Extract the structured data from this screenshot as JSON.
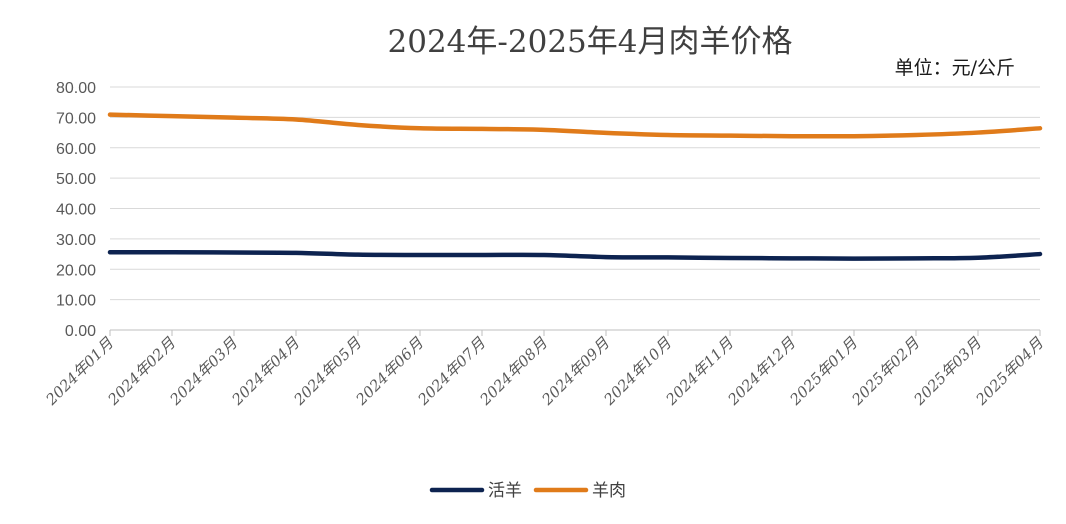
{
  "chart_data": {
    "type": "line",
    "title": "2024年-2025年4月肉羊价格",
    "unit_label": "单位：元/公斤",
    "xlabel": "",
    "ylabel": "",
    "ylim": [
      0,
      80
    ],
    "yticks": [
      "0.00",
      "10.00",
      "20.00",
      "30.00",
      "40.00",
      "50.00",
      "60.00",
      "70.00",
      "80.00"
    ],
    "grid": true,
    "legend_position": "bottom-center",
    "categories": [
      "2024年01月",
      "2024年02月",
      "2024年03月",
      "2024年04月",
      "2024年05月",
      "2024年06月",
      "2024年07月",
      "2024年08月",
      "2024年09月",
      "2024年10月",
      "2024年11月",
      "2024年12月",
      "2025年01月",
      "2025年02月",
      "2025年03月",
      "2025年04月"
    ],
    "series": [
      {
        "name": "活羊",
        "color": "#0d2350",
        "values": [
          25.6,
          25.6,
          25.5,
          25.4,
          24.8,
          24.7,
          24.7,
          24.7,
          24.0,
          23.9,
          23.7,
          23.6,
          23.5,
          23.6,
          23.8,
          25.0
        ]
      },
      {
        "name": "羊肉",
        "color": "#e07b1a",
        "values": [
          70.9,
          70.4,
          69.9,
          69.3,
          67.5,
          66.4,
          66.2,
          65.9,
          64.9,
          64.2,
          64.0,
          63.8,
          63.8,
          64.2,
          65.0,
          66.4
        ]
      }
    ]
  }
}
